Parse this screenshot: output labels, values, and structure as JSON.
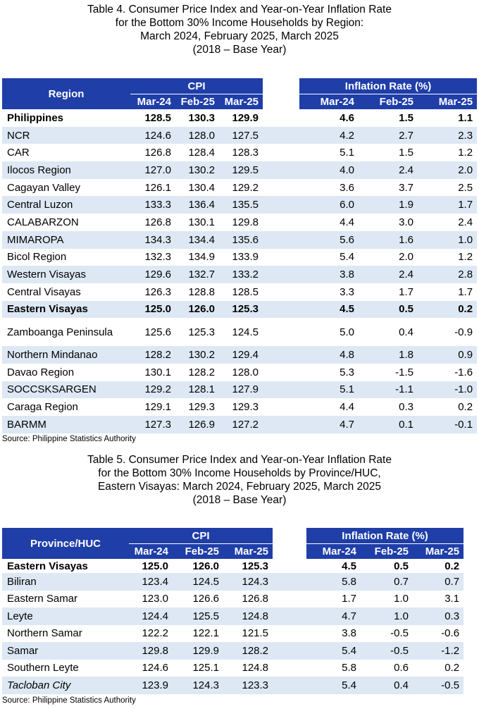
{
  "table4": {
    "title_lines": [
      "Table 4. Consumer Price Index and Year-on-Year Inflation Rate",
      "for the Bottom 30% Income Households by Region:",
      "March 2024, February 2025, March 2025",
      "(2018 – Base Year)"
    ],
    "header": {
      "row_label": "Region",
      "cpi_label": "CPI",
      "inflation_label": "Inflation Rate (%)",
      "periods": [
        "Mar-24",
        "Feb-25",
        "Mar-25"
      ]
    },
    "rows": [
      {
        "name": "Philippines",
        "cpi": [
          "128.5",
          "130.3",
          "129.9"
        ],
        "infl": [
          "4.6",
          "1.5",
          "1.1"
        ]
      },
      {
        "name": "NCR",
        "cpi": [
          "124.6",
          "128.0",
          "127.5"
        ],
        "infl": [
          "4.2",
          "2.7",
          "2.3"
        ]
      },
      {
        "name": "CAR",
        "cpi": [
          "126.8",
          "128.4",
          "128.3"
        ],
        "infl": [
          "5.1",
          "1.5",
          "1.2"
        ]
      },
      {
        "name": "Ilocos Region",
        "cpi": [
          "127.0",
          "130.2",
          "129.5"
        ],
        "infl": [
          "4.0",
          "2.4",
          "2.0"
        ]
      },
      {
        "name": "Cagayan Valley",
        "cpi": [
          "126.1",
          "130.4",
          "129.2"
        ],
        "infl": [
          "3.6",
          "3.7",
          "2.5"
        ]
      },
      {
        "name": "Central Luzon",
        "cpi": [
          "133.3",
          "136.4",
          "135.5"
        ],
        "infl": [
          "6.0",
          "1.9",
          "1.7"
        ]
      },
      {
        "name": "CALABARZON",
        "cpi": [
          "126.8",
          "130.1",
          "129.8"
        ],
        "infl": [
          "4.4",
          "3.0",
          "2.4"
        ]
      },
      {
        "name": "MIMAROPA",
        "cpi": [
          "134.3",
          "134.4",
          "135.6"
        ],
        "infl": [
          "5.6",
          "1.6",
          "1.0"
        ]
      },
      {
        "name": "Bicol Region",
        "cpi": [
          "132.3",
          "134.9",
          "133.9"
        ],
        "infl": [
          "5.4",
          "2.0",
          "1.2"
        ]
      },
      {
        "name": "Western Visayas",
        "cpi": [
          "129.6",
          "132.7",
          "133.2"
        ],
        "infl": [
          "3.8",
          "2.4",
          "2.8"
        ]
      },
      {
        "name": "Central Visayas",
        "cpi": [
          "126.3",
          "128.8",
          "128.5"
        ],
        "infl": [
          "3.3",
          "1.7",
          "1.7"
        ]
      },
      {
        "name": "Eastern Visayas",
        "cpi": [
          "125.0",
          "126.0",
          "125.3"
        ],
        "infl": [
          "4.5",
          "0.5",
          "0.2"
        ]
      },
      {
        "name": "Zamboanga Peninsula",
        "cpi": [
          "125.6",
          "125.3",
          "124.5"
        ],
        "infl": [
          "5.0",
          "0.4",
          "-0.9"
        ]
      },
      {
        "name": "Northern Mindanao",
        "cpi": [
          "128.2",
          "130.2",
          "129.4"
        ],
        "infl": [
          "4.8",
          "1.8",
          "0.9"
        ]
      },
      {
        "name": "Davao Region",
        "cpi": [
          "130.1",
          "128.2",
          "128.0"
        ],
        "infl": [
          "5.3",
          "-1.5",
          "-1.6"
        ]
      },
      {
        "name": "SOCCSKSARGEN",
        "cpi": [
          "129.2",
          "128.1",
          "127.9"
        ],
        "infl": [
          "5.1",
          "-1.1",
          "-1.0"
        ]
      },
      {
        "name": "Caraga Region",
        "cpi": [
          "129.1",
          "129.3",
          "129.3"
        ],
        "infl": [
          "4.4",
          "0.3",
          "0.2"
        ]
      },
      {
        "name": "BARMM",
        "cpi": [
          "127.3",
          "126.9",
          "127.2"
        ],
        "infl": [
          "4.7",
          "0.1",
          "-0.1"
        ]
      }
    ],
    "source": "Source: Philippine Statistics Authority"
  },
  "table5": {
    "title_lines": [
      "Table 5. Consumer Price Index and Year-on-Year Inflation Rate",
      "for the Bottom 30% Income Households by Province/HUC,",
      "Eastern Visayas: March 2024, February 2025, March 2025",
      "(2018 – Base Year)"
    ],
    "header": {
      "row_label": "Province/HUC",
      "cpi_label": "CPI",
      "inflation_label": "Inflation Rate (%)",
      "periods": [
        "Mar-24",
        "Feb-25",
        "Mar-25"
      ]
    },
    "rows": [
      {
        "name": "Eastern Visayas",
        "cpi": [
          "125.0",
          "126.0",
          "125.3"
        ],
        "infl": [
          "4.5",
          "0.5",
          "0.2"
        ]
      },
      {
        "name": "Biliran",
        "cpi": [
          "123.4",
          "124.5",
          "124.3"
        ],
        "infl": [
          "5.8",
          "0.7",
          "0.7"
        ]
      },
      {
        "name": "Eastern Samar",
        "cpi": [
          "123.0",
          "126.6",
          "126.8"
        ],
        "infl": [
          "1.7",
          "1.0",
          "3.1"
        ]
      },
      {
        "name": "Leyte",
        "cpi": [
          "124.4",
          "125.5",
          "124.8"
        ],
        "infl": [
          "4.7",
          "1.0",
          "0.3"
        ]
      },
      {
        "name": "Northern Samar",
        "cpi": [
          "122.2",
          "122.1",
          "121.5"
        ],
        "infl": [
          "3.8",
          "-0.5",
          "-0.6"
        ]
      },
      {
        "name": "Samar",
        "cpi": [
          "129.8",
          "129.9",
          "128.2"
        ],
        "infl": [
          "5.4",
          "-0.5",
          "-1.2"
        ]
      },
      {
        "name": "Southern Leyte",
        "cpi": [
          "124.6",
          "125.1",
          "124.8"
        ],
        "infl": [
          "5.8",
          "0.6",
          "0.2"
        ]
      },
      {
        "name": "Tacloban City",
        "cpi": [
          "123.9",
          "124.3",
          "123.3"
        ],
        "infl": [
          "5.4",
          "0.4",
          "-0.5"
        ]
      }
    ],
    "source": "Source: Philippine Statistics Authority"
  },
  "colors": {
    "header_bg": "#1f3ea8",
    "header_text": "#ffffff",
    "alt_row": "#dde8f4"
  }
}
